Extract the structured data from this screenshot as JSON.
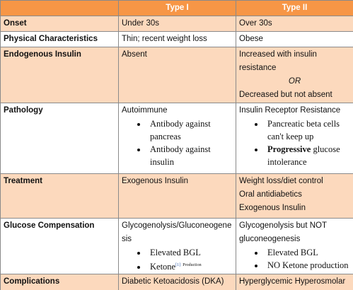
{
  "table": {
    "header": {
      "type1": "Type I",
      "type2": "Type II"
    },
    "rows": [
      {
        "label": "Onset",
        "type1": [
          {
            "text": "Under 30s"
          }
        ],
        "type2": [
          {
            "text": "Over 30s"
          }
        ]
      },
      {
        "label": "Physical Characteristics",
        "type1": [
          {
            "text": "Thin; recent weight loss"
          }
        ],
        "type2": [
          {
            "text": "Obese"
          }
        ]
      },
      {
        "label": "Endogenous Insulin",
        "type1": [
          {
            "text": "Absent"
          }
        ],
        "type2": [
          {
            "text": "Increased with insulin resistance"
          },
          {
            "text": "OR",
            "style": "italic"
          },
          {
            "text": "Decreased but not absent"
          }
        ]
      },
      {
        "label": "Pathology",
        "type1": [
          {
            "text": "Autoimmune"
          },
          {
            "bullets": [
              "Antibody against pancreas",
              "Antibody against insulin"
            ]
          }
        ],
        "type2": [
          {
            "text": "Insulin Receptor Resistance"
          },
          {
            "bullets": [
              "Pancreatic beta cells can't keep up",
              {
                "bold": "Progressive",
                "text": "glucose intolerance"
              }
            ]
          }
        ]
      },
      {
        "label": "Treatment",
        "type1": [
          {
            "text": "Exogenous Insulin"
          }
        ],
        "type2": [
          {
            "text": "Weight loss/diet control"
          },
          {
            "text": "Oral antidiabetics"
          },
          {
            "text": "Exogenous Insulin"
          }
        ]
      },
      {
        "label": "Glucose Compensation",
        "type1": [
          {
            "text": "Glycogenolysis/Gluconeogenesis"
          },
          {
            "bullets": [
              "Elevated BGL",
              {
                "text": "Ketone",
                "sup": "[1]",
                "note": "Production"
              }
            ]
          }
        ],
        "type2": [
          {
            "text": "Glycogenolysis but NOT gluconeogenesis"
          },
          {
            "bullets": [
              "Elevated BGL",
              "NO Ketone production"
            ]
          }
        ]
      },
      {
        "label": "Complications",
        "type1": [
          {
            "text": "Diabetic Ketoacidosis (DKA)"
          }
        ],
        "type2": [
          {
            "text": "Hyperglycemic Hyperosmolar Syndrome (HHS)"
          }
        ]
      }
    ]
  }
}
